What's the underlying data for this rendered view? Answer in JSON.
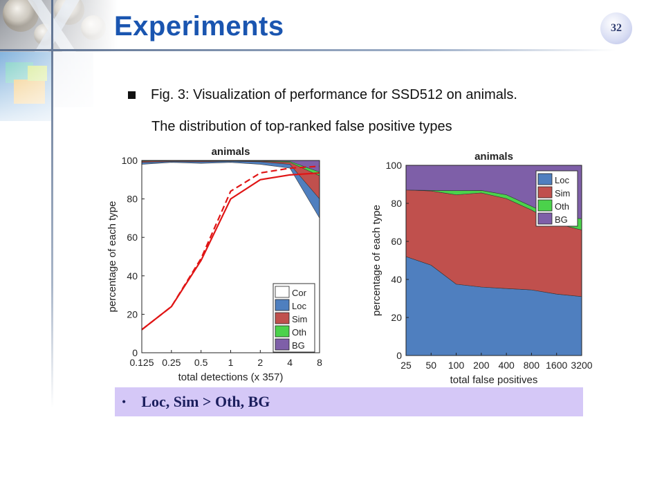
{
  "slide": {
    "title": "Experiments",
    "page_number": "32",
    "bullet": "Fig. 3: Visualization of performance for SSD512 on animals.",
    "subline": "The distribution of top-ranked false positive types",
    "conclusion_bullet": "•",
    "conclusion": "Loc, Sim > Oth, BG"
  },
  "colors": {
    "title": "#1a55b0",
    "loc": "#4f7fbf",
    "sim": "#c0504d",
    "oth": "#4bd24b",
    "bg": "#7e5fa8",
    "cor": "#ffffff",
    "conclusion_bg": "#d5c8f7"
  },
  "chart_data": [
    {
      "type": "area",
      "title": "animals",
      "xlabel": "total detections (x 357)",
      "ylabel": "percentage of each type",
      "x": [
        "0.125",
        "0.25",
        "0.5",
        "1",
        "2",
        "4",
        "8"
      ],
      "ylim": [
        0,
        100
      ],
      "yticks": [
        0,
        20,
        40,
        60,
        80,
        100
      ],
      "legend": [
        "Cor",
        "Loc",
        "Sim",
        "Oth",
        "BG"
      ],
      "legend_position": "bottom-right",
      "stacked_boundaries": [
        {
          "name": "Cor",
          "values": [
            98,
            99,
            98.5,
            99,
            98,
            96,
            70
          ]
        },
        {
          "name": "Loc",
          "values": [
            99,
            99.5,
            99.3,
            99.6,
            99.3,
            98,
            80
          ]
        },
        {
          "name": "Sim",
          "values": [
            99.6,
            99.8,
            99.7,
            99.8,
            99.6,
            99,
            92
          ]
        },
        {
          "name": "Oth",
          "values": [
            99.8,
            99.9,
            99.8,
            99.9,
            99.8,
            99.5,
            94
          ]
        }
      ],
      "recall_lines": [
        {
          "style": "solid",
          "values": [
            12,
            24,
            48,
            80,
            90,
            92.5,
            93.5
          ]
        },
        {
          "style": "dashed",
          "values": [
            12,
            24,
            49,
            84,
            93.5,
            96,
            97
          ]
        }
      ]
    },
    {
      "type": "area",
      "title": "animals",
      "xlabel": "total false positives",
      "ylabel": "percentage of each type",
      "x": [
        "25",
        "50",
        "100",
        "200",
        "400",
        "800",
        "1600",
        "3200"
      ],
      "ylim": [
        0,
        100
      ],
      "yticks": [
        0,
        20,
        40,
        60,
        80,
        100
      ],
      "legend": [
        "Loc",
        "Sim",
        "Oth",
        "BG"
      ],
      "legend_position": "top-right",
      "series": [
        {
          "name": "Loc",
          "values": [
            52,
            47.5,
            37.5,
            36,
            35.2,
            34.5,
            32.3,
            31
          ]
        },
        {
          "name": "Sim",
          "values": [
            35,
            39,
            47,
            49.5,
            47.3,
            42,
            37,
            35
          ]
        },
        {
          "name": "Oth",
          "values": [
            0,
            0.3,
            2.2,
            1.3,
            2,
            2,
            3,
            6
          ]
        },
        {
          "name": "BG",
          "values": [
            13,
            13.2,
            13.3,
            13.2,
            15.5,
            21.5,
            27.7,
            28
          ]
        }
      ]
    }
  ]
}
